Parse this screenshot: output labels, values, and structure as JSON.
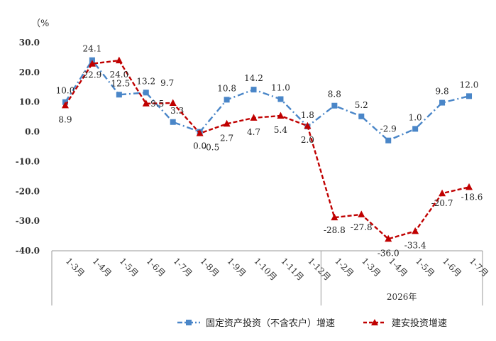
{
  "chart_data": {
    "type": "line",
    "unit_label": "（%",
    "categories": [
      "1-3月",
      "1-4月",
      "1-5月",
      "1-6月",
      "1-7月",
      "1-8月",
      "1-9月",
      "1-10月",
      "1-11月",
      "1-12月",
      "1-2月",
      "1-3月",
      "1-4月",
      "1-5月",
      "1-6月",
      "1-7月"
    ],
    "group_label": "2026年",
    "group_start_index": 10,
    "ylim": [
      -40,
      30
    ],
    "yticks": [
      "30.0",
      "20.0",
      "10.0",
      "0.0",
      "-10.0",
      "-20.0",
      "-30.0",
      "-40.0"
    ],
    "ytick_values": [
      30,
      20,
      10,
      0,
      -10,
      -20,
      -30,
      -40
    ],
    "series": [
      {
        "name": "固定资产投资（不含农户）增速",
        "color": "#4a86c8",
        "marker": "square",
        "dash": "dashdot",
        "values": [
          10.0,
          24.1,
          12.5,
          13.2,
          3.3,
          0.0,
          10.8,
          14.2,
          11.0,
          1.8,
          8.8,
          5.2,
          -2.9,
          1.0,
          9.8,
          12.0
        ],
        "labels": [
          "10.0",
          "24.1",
          "12.5",
          "13.2",
          "3.3",
          "0.0",
          "10.8",
          "14.2",
          "11.0",
          "1.8",
          "8.8",
          "5.2",
          "-2.9",
          "1.0",
          "9.8",
          "12.0"
        ]
      },
      {
        "name": "建安投资增速",
        "color": "#c00000",
        "marker": "triangle",
        "dash": "dash",
        "values": [
          8.9,
          22.9,
          24.0,
          9.5,
          9.7,
          -0.5,
          2.7,
          4.7,
          5.4,
          2.0,
          -28.8,
          -27.8,
          -36.0,
          -33.4,
          -20.7,
          -18.6
        ],
        "labels": [
          "8.9",
          "22.9",
          "24.0",
          "9.5",
          "9.7",
          "-0.5",
          "2.7",
          "4.7",
          "5.4",
          "2.0",
          "-28.8",
          "-27.8",
          "-36.0",
          "-33.4",
          "-20.7",
          "-18.6"
        ]
      }
    ],
    "grid": false,
    "legend_position": "bottom"
  }
}
